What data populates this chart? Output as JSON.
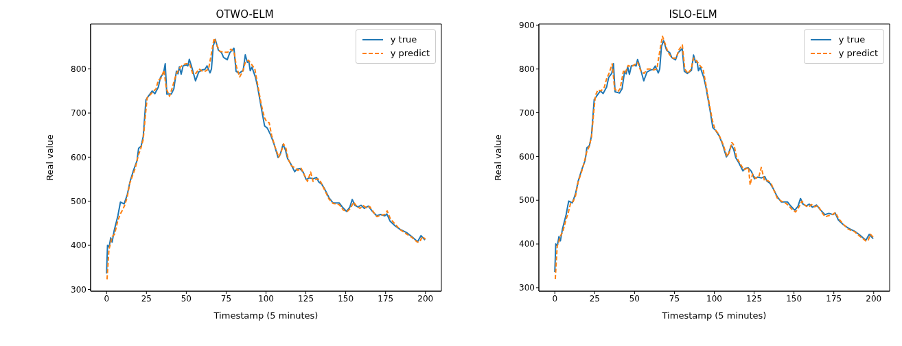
{
  "chart_data": [
    {
      "type": "line",
      "title": "OTWO-ELM",
      "xlabel": "Timestamp (5 minutes)",
      "ylabel": "Real value",
      "xlim": [
        -10,
        210
      ],
      "ylim": [
        296,
        902
      ],
      "xticks": [
        0,
        25,
        50,
        75,
        100,
        125,
        150,
        175,
        200
      ],
      "yticks": [
        300,
        400,
        500,
        600,
        700,
        800
      ],
      "legend": "top right",
      "grid": false,
      "series": [
        {
          "name": "y true",
          "color": "#1f77b4",
          "line_style": "solid",
          "x": [
            0,
            0.6,
            1.6,
            2.6,
            3.5,
            4.8,
            7.1,
            8.7,
            11,
            13,
            14.7,
            16.9,
            19.1,
            20.1,
            21.7,
            23,
            24.7,
            26,
            28.6,
            30.3,
            32.5,
            33.8,
            35.7,
            36.8,
            37.8,
            40.6,
            42.2,
            43.8,
            44.8,
            45.7,
            46.8,
            48,
            50,
            51,
            51.9,
            53.2,
            55.8,
            57.8,
            60.1,
            61.7,
            63,
            64.9,
            65.8,
            66.9,
            68.2,
            70.1,
            72.1,
            73.4,
            75.7,
            77.3,
            79.9,
            81.2,
            83.1,
            85.7,
            87,
            88.3,
            89.2,
            90.1,
            91.2,
            93.4,
            94.7,
            97.3,
            99.1,
            100.8,
            103.1,
            105,
            107.6,
            108.9,
            110.7,
            112.2,
            113.5,
            115.5,
            118,
            119.4,
            121.3,
            123.3,
            125.2,
            127.2,
            129.7,
            131.7,
            133,
            134.9,
            136.9,
            139.5,
            142.1,
            146,
            147.9,
            150.5,
            152.5,
            154.1,
            155.7,
            157.7,
            159.6,
            161.6,
            164.2,
            166.8,
            169.4,
            171.9,
            174.5,
            175.8,
            177.8,
            181,
            184.2,
            188.1,
            191.4,
            194.6,
            195.2,
            197.2,
            199.7
          ],
          "values": [
            336,
            400,
            396,
            417,
            407,
            434,
            467,
            498,
            494,
            515,
            544,
            570,
            592,
            620,
            625,
            647,
            730,
            737,
            750,
            744,
            759,
            781,
            790,
            812,
            743,
            743,
            755,
            795,
            789,
            805,
            788,
            807,
            809,
            807,
            822,
            807,
            773,
            793,
            798,
            799,
            807,
            791,
            800,
            852,
            867,
            843,
            837,
            826,
            821,
            837,
            847,
            795,
            790,
            797,
            832,
            815,
            818,
            796,
            804,
            781,
            760,
            707,
            671,
            666,
            649,
            630,
            599,
            606,
            629,
            616,
            597,
            585,
            567,
            573,
            574,
            566,
            549,
            553,
            551,
            554,
            544,
            539,
            527,
            508,
            496,
            496,
            487,
            477,
            486,
            504,
            491,
            487,
            491,
            484,
            489,
            477,
            467,
            470,
            467,
            471,
            455,
            444,
            436,
            429,
            420,
            410,
            409,
            422,
            412
          ]
        },
        {
          "name": "y predict",
          "color": "#ff7f0e",
          "line_style": "dashed",
          "x": [
            0.3,
            1.5,
            2.5,
            3.5,
            5,
            7,
            8.5,
            10,
            11.5,
            13,
            14.5,
            16.5,
            18,
            20,
            21.5,
            23,
            24.5,
            25.5,
            27,
            29,
            31,
            32.5,
            34,
            36,
            37.5,
            39.5,
            41,
            43,
            44,
            46,
            48,
            50,
            52,
            54,
            56,
            58,
            60,
            62,
            64,
            66,
            67.5,
            69,
            71,
            73.5,
            76,
            78,
            80,
            81.5,
            83.5,
            85.5,
            87,
            89,
            91,
            93,
            95,
            97,
            99,
            100.5,
            102,
            103.5,
            105.5,
            108,
            109.5,
            111,
            112.5,
            114,
            116,
            118.5,
            120,
            122,
            124,
            126,
            128,
            129.5,
            131.5,
            133.5,
            135.5,
            137.5,
            139.5,
            142,
            144,
            146,
            148.5,
            151,
            153,
            155,
            157,
            159,
            161,
            163,
            165,
            167.5,
            169.5,
            172,
            174.5,
            176,
            178,
            181,
            184,
            188,
            191.5,
            195,
            196.5,
            198,
            200
          ],
          "values": [
            323,
            390,
            405,
            420,
            425,
            455,
            470,
            480,
            492,
            510,
            540,
            560,
            575,
            605,
            620,
            640,
            700,
            735,
            740,
            748,
            755,
            775,
            778,
            797,
            755,
            738,
            755,
            780,
            790,
            803,
            810,
            812,
            812,
            790,
            790,
            800,
            795,
            795,
            800,
            840,
            870,
            855,
            840,
            838,
            838,
            845,
            838,
            805,
            782,
            795,
            815,
            820,
            810,
            800,
            760,
            720,
            690,
            680,
            678,
            650,
            625,
            600,
            612,
            630,
            620,
            595,
            580,
            575,
            570,
            575,
            560,
            545,
            566,
            545,
            550,
            550,
            535,
            520,
            505,
            495,
            494,
            492,
            480,
            477,
            484,
            498,
            488,
            484,
            490,
            485,
            488,
            475,
            465,
            468,
            470,
            478,
            460,
            448,
            436,
            426,
            418,
            407,
            408,
            420,
            414
          ]
        }
      ]
    },
    {
      "type": "line",
      "title": "ISLO-ELM",
      "xlabel": "Timestamp (5 minutes)",
      "ylabel": "Real value",
      "xlim": [
        -10,
        210
      ],
      "ylim": [
        292,
        903
      ],
      "xticks": [
        0,
        25,
        50,
        75,
        100,
        125,
        150,
        175,
        200
      ],
      "yticks": [
        300,
        400,
        500,
        600,
        700,
        800,
        900
      ],
      "legend": "top right",
      "grid": false,
      "series": [
        {
          "name": "y true",
          "color": "#1f77b4",
          "line_style": "solid",
          "x": [
            0,
            0.6,
            1.6,
            2.6,
            3.5,
            4.8,
            7.1,
            8.7,
            11,
            13,
            14.7,
            16.9,
            19.1,
            20.1,
            21.7,
            23,
            24.7,
            26,
            28.6,
            30.3,
            32.5,
            33.8,
            35.7,
            36.8,
            37.8,
            40.6,
            42.2,
            43.8,
            44.8,
            45.7,
            46.8,
            48,
            50,
            51,
            51.9,
            53.2,
            55.8,
            57.8,
            60.1,
            61.7,
            63,
            64.9,
            65.8,
            66.9,
            68.2,
            70.1,
            72.1,
            73.4,
            75.7,
            77.3,
            79.9,
            81.2,
            83.1,
            85.7,
            87,
            88.3,
            89.2,
            90.1,
            91.2,
            93.4,
            94.7,
            97.3,
            99.1,
            100.8,
            103.1,
            105,
            107.6,
            108.9,
            110.7,
            112.2,
            113.5,
            115.5,
            118,
            119.4,
            121.3,
            123.3,
            125.2,
            127.2,
            129.7,
            131.7,
            133,
            134.9,
            136.9,
            139.5,
            142.1,
            146,
            147.9,
            150.5,
            152.5,
            154.1,
            155.7,
            157.7,
            159.6,
            161.6,
            164.2,
            166.8,
            169.4,
            171.9,
            174.5,
            175.8,
            177.8,
            181,
            184.2,
            188.1,
            191.4,
            194.6,
            195.2,
            197.2,
            199.7
          ],
          "values": [
            336,
            400,
            396,
            417,
            407,
            434,
            467,
            498,
            494,
            515,
            544,
            570,
            592,
            620,
            625,
            647,
            730,
            737,
            750,
            744,
            759,
            781,
            790,
            812,
            748,
            745,
            755,
            795,
            789,
            805,
            788,
            807,
            809,
            807,
            822,
            807,
            773,
            793,
            798,
            799,
            807,
            791,
            800,
            852,
            865,
            843,
            837,
            826,
            821,
            837,
            847,
            795,
            790,
            797,
            832,
            815,
            818,
            796,
            804,
            781,
            760,
            707,
            666,
            660,
            647,
            630,
            599,
            606,
            626,
            616,
            597,
            585,
            567,
            573,
            574,
            566,
            549,
            553,
            551,
            554,
            544,
            539,
            527,
            508,
            496,
            496,
            487,
            477,
            486,
            504,
            491,
            487,
            491,
            484,
            489,
            477,
            467,
            470,
            467,
            471,
            455,
            444,
            436,
            429,
            420,
            410,
            409,
            422,
            412
          ]
        },
        {
          "name": "y predict",
          "color": "#ff7f0e",
          "line_style": "dashed",
          "x": [
            0.3,
            1.5,
            2.5,
            3.5,
            5,
            7,
            8.5,
            10,
            11.5,
            13,
            14.5,
            16.5,
            18,
            20,
            21.5,
            23,
            24.5,
            25.5,
            27,
            29,
            31,
            32.5,
            34,
            36,
            37.5,
            39.5,
            41,
            43,
            44,
            46,
            48,
            50,
            52,
            54,
            56,
            58,
            60,
            62,
            64,
            66,
            67.5,
            69,
            71,
            73.5,
            76,
            78,
            80,
            81.5,
            83.5,
            85.5,
            87,
            89,
            91,
            93,
            95,
            97,
            99,
            100.5,
            102,
            103.5,
            105.5,
            108,
            109.5,
            111,
            112.5,
            114,
            116,
            118.5,
            120,
            121.5,
            122.5,
            124,
            126,
            128,
            129.5,
            131.5,
            133.5,
            135.5,
            137.5,
            139.5,
            142,
            144,
            146,
            148.5,
            151,
            153,
            155,
            157,
            159,
            161,
            163,
            165,
            167.5,
            169.5,
            172,
            174.5,
            176,
            178,
            181,
            184,
            188,
            191.5,
            195,
            196.5,
            198,
            200
          ],
          "values": [
            320,
            395,
            405,
            418,
            428,
            455,
            472,
            495,
            497,
            510,
            540,
            562,
            580,
            610,
            622,
            645,
            705,
            740,
            752,
            750,
            758,
            778,
            790,
            812,
            755,
            748,
            755,
            795,
            790,
            808,
            805,
            810,
            815,
            795,
            790,
            800,
            800,
            798,
            800,
            845,
            875,
            860,
            838,
            825,
            825,
            845,
            855,
            800,
            790,
            800,
            825,
            818,
            808,
            800,
            760,
            718,
            680,
            662,
            655,
            645,
            628,
            600,
            610,
            632,
            625,
            598,
            585,
            570,
            572,
            575,
            535,
            560,
            550,
            554,
            575,
            545,
            545,
            540,
            522,
            505,
            498,
            495,
            490,
            480,
            473,
            484,
            498,
            488,
            484,
            490,
            485,
            488,
            472,
            462,
            465,
            468,
            472,
            458,
            445,
            434,
            428,
            417,
            407,
            408,
            422,
            414
          ]
        }
      ]
    }
  ]
}
